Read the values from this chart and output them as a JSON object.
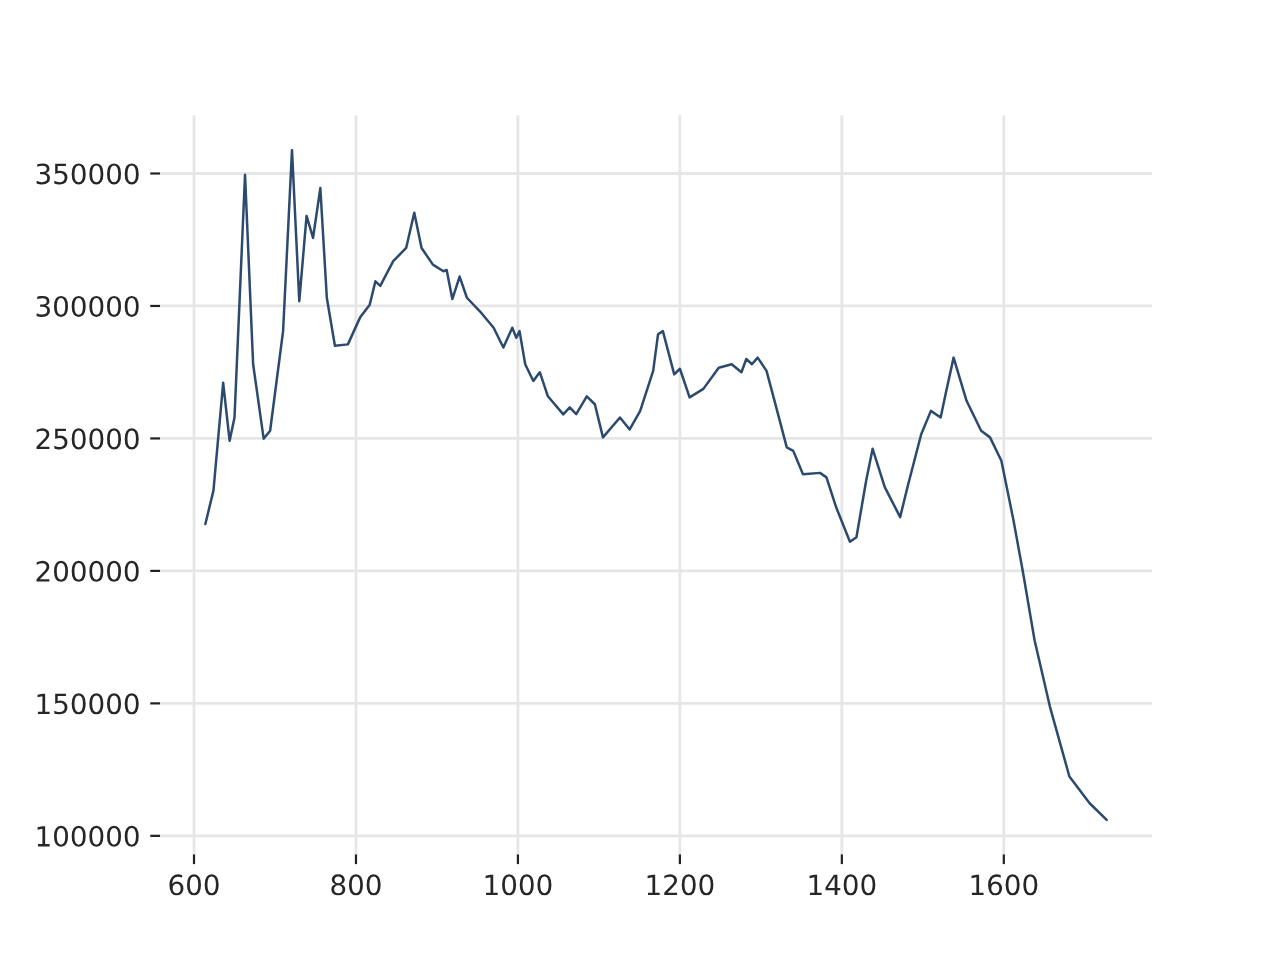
{
  "chart_data": {
    "type": "line",
    "x": [
      614,
      624,
      636,
      644,
      650,
      663,
      673,
      686,
      694,
      710,
      721,
      730,
      739,
      747,
      756,
      764,
      774,
      790,
      805,
      817,
      824,
      830,
      846,
      862,
      872,
      881,
      895,
      908,
      912,
      919,
      928,
      937,
      953,
      970,
      982,
      993,
      998,
      1002,
      1009,
      1019,
      1027,
      1037,
      1056,
      1064,
      1072,
      1085,
      1095,
      1105,
      1126,
      1138,
      1151,
      1167,
      1173,
      1179,
      1193,
      1200,
      1212,
      1229,
      1248,
      1264,
      1276,
      1282,
      1289,
      1296,
      1307,
      1319,
      1332,
      1340,
      1352,
      1373,
      1381,
      1393,
      1410,
      1418,
      1430,
      1438,
      1453,
      1472,
      1481,
      1498,
      1510,
      1522,
      1528,
      1538,
      1554,
      1572,
      1583,
      1597,
      1612,
      1624,
      1638,
      1657,
      1681,
      1706,
      1727
    ],
    "series": [
      {
        "color": "#2b4a6e",
        "values": [
          217700,
          230300,
          271000,
          249100,
          257900,
          349500,
          278000,
          249900,
          252900,
          290500,
          358800,
          301800,
          334000,
          325700,
          344500,
          303100,
          285000,
          285500,
          295600,
          300500,
          309300,
          307600,
          316900,
          321900,
          335200,
          321900,
          315600,
          313100,
          313600,
          302600,
          311100,
          303100,
          298000,
          291800,
          284300,
          291800,
          288000,
          290500,
          278000,
          271700,
          275000,
          265900,
          259100,
          261700,
          259200,
          265900,
          262900,
          250400,
          257900,
          253400,
          260400,
          275500,
          289300,
          290500,
          274200,
          276300,
          265500,
          268700,
          276700,
          278000,
          275000,
          280000,
          278000,
          280500,
          275500,
          261700,
          246600,
          245300,
          236500,
          237000,
          235300,
          224000,
          211000,
          212700,
          234000,
          246100,
          231600,
          220300,
          231600,
          251600,
          260400,
          257900,
          266600,
          280500,
          264200,
          252900,
          250400,
          241600,
          219000,
          198900,
          173800,
          148700,
          122400,
          112300,
          106000
        ]
      }
    ],
    "xlim": [
      558,
      1783
    ],
    "ylim": [
      93000,
      372000
    ],
    "xticks": [
      600,
      800,
      1000,
      1200,
      1400,
      1600
    ],
    "yticks": [
      100000,
      150000,
      200000,
      250000,
      300000,
      350000
    ],
    "grid": true,
    "line_style": "solid",
    "marker": "none"
  }
}
